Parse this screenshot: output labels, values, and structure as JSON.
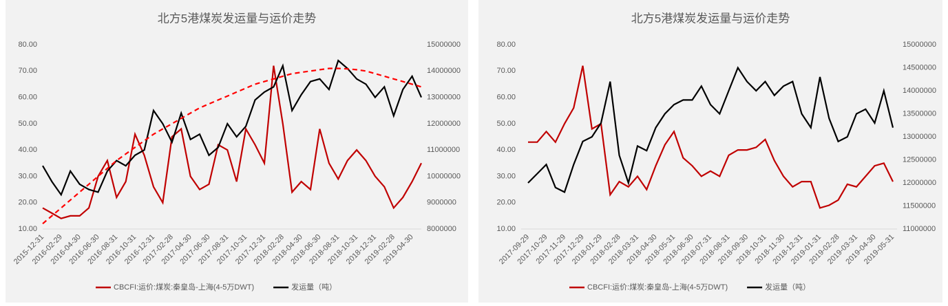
{
  "chart_data": [
    {
      "type": "line",
      "title": "北方5港煤炭发运量与运价走势",
      "categories": [
        "2015-12-31",
        null,
        "2016-02-29",
        null,
        "2016-04-30",
        null,
        "2016-06-30",
        null,
        "2016-08-31",
        null,
        "2016-10-31",
        null,
        "2016-12-31",
        null,
        "2017-02-28",
        null,
        "2017-04-30",
        null,
        "2017-06-30",
        null,
        "2017-08-31",
        null,
        "2017-10-31",
        null,
        "2017-12-31",
        null,
        "2018-02-28",
        null,
        "2018-04-30",
        null,
        "2018-06-30",
        null,
        "2018-08-31",
        null,
        "2018-10-31",
        null,
        "2018-12-31",
        null,
        "2019-02-28",
        null,
        "2019-04-30",
        null
      ],
      "series": [
        {
          "name": "CBCFI:运价:煤炭:秦皇岛-上海(4-5万DWT)",
          "color": "#c00000",
          "values": [
            18,
            16,
            14,
            15,
            15,
            18,
            30,
            36,
            22,
            28,
            46,
            38,
            26,
            20,
            45,
            48,
            30,
            25,
            27,
            42,
            40,
            28,
            48,
            42,
            35,
            72,
            50,
            24,
            28,
            25,
            48,
            35,
            29,
            36,
            40,
            36,
            30,
            26,
            18,
            22,
            28,
            35
          ]
        },
        {
          "name": "发运量（吨）",
          "color": "#000000",
          "axis": "y2",
          "values": [
            10400000,
            9800000,
            9300000,
            10200000,
            9700000,
            9500000,
            9400000,
            10200000,
            10600000,
            10400000,
            10800000,
            11000000,
            12500000,
            12000000,
            11300000,
            12400000,
            11400000,
            11600000,
            10800000,
            11100000,
            12000000,
            11500000,
            11900000,
            12900000,
            13200000,
            13400000,
            14200000,
            12500000,
            13100000,
            13600000,
            13700000,
            13300000,
            14400000,
            14100000,
            13700000,
            13500000,
            13000000,
            13400000,
            12300000,
            13300000,
            13800000,
            13000000
          ]
        }
      ],
      "trendline": {
        "color": "#ff0000",
        "dashed": true,
        "values": [
          12,
          15,
          18,
          21,
          24,
          27,
          30,
          33,
          36,
          38.5,
          41,
          43.5,
          46,
          48,
          50,
          52,
          54,
          56,
          57.5,
          59,
          60.5,
          62,
          63.5,
          65,
          66,
          67,
          68,
          69,
          69.5,
          70,
          70.5,
          71,
          71,
          70.8,
          70.5,
          70,
          69,
          68,
          67,
          66,
          65,
          64
        ]
      },
      "ylim": [
        10,
        80
      ],
      "yticks": [
        {
          "value": 10,
          "label": "10.00"
        },
        {
          "value": 20,
          "label": "20.00"
        },
        {
          "value": 30,
          "label": "30.00"
        },
        {
          "value": 40,
          "label": "40.00"
        },
        {
          "value": 50,
          "label": "50.00"
        },
        {
          "value": 60,
          "label": "60.00"
        },
        {
          "value": 70,
          "label": "70.00"
        },
        {
          "value": 80,
          "label": "80.00"
        }
      ],
      "y2lim": [
        8000000,
        15000000
      ],
      "y2ticks": [
        8000000,
        9000000,
        10000000,
        11000000,
        12000000,
        13000000,
        14000000,
        15000000
      ],
      "legend": "bottom"
    },
    {
      "type": "line",
      "title": "北方5港煤炭发运量与运价走势",
      "categories": [
        "2017-09-29",
        null,
        "2017-10-29",
        null,
        "2017-11-29",
        null,
        "2017-12-29",
        null,
        "2018-01-29",
        null,
        "2018-02-28",
        null,
        "2018-03-31",
        null,
        "2018-04-30",
        null,
        "2018-05-31",
        null,
        "2018-06-30",
        null,
        "2018-07-31",
        null,
        "2018-08-31",
        null,
        "2018-09-30",
        null,
        "2018-10-31",
        null,
        "2018-11-30",
        null,
        "2018-12-31",
        null,
        "2019-01-31",
        null,
        "2019-02-28",
        null,
        "2019-03-31",
        null,
        "2019-04-30",
        null,
        "2019-05-31"
      ],
      "series": [
        {
          "name": "CBCFI:运价:煤炭:秦皇岛-上海(4-5万DWT)",
          "color": "#c00000",
          "values": [
            43,
            43,
            47,
            43,
            50,
            56,
            72,
            48,
            50,
            23,
            28,
            26,
            30,
            25,
            34,
            42,
            47,
            37,
            34,
            30,
            32,
            30,
            38,
            40,
            40,
            41,
            44,
            36,
            30,
            26,
            28,
            28,
            18,
            19,
            21,
            27,
            26,
            30,
            34,
            35,
            28
          ]
        },
        {
          "name": "发运量（吨）",
          "color": "#000000",
          "axis": "y2",
          "values": [
            12000000,
            12200000,
            12400000,
            11900000,
            11800000,
            12400000,
            12900000,
            13000000,
            13300000,
            14200000,
            12600000,
            12000000,
            12800000,
            12700000,
            13200000,
            13500000,
            13700000,
            13800000,
            13800000,
            14100000,
            13700000,
            13500000,
            14000000,
            14500000,
            14200000,
            14000000,
            14200000,
            13900000,
            14100000,
            14200000,
            13500000,
            13200000,
            14300000,
            13400000,
            12900000,
            13000000,
            13500000,
            13600000,
            13300000,
            14000000,
            13200000
          ]
        }
      ],
      "ylim": [
        10,
        80
      ],
      "yticks": [
        {
          "value": 10,
          "label": "10.00"
        },
        {
          "value": 20,
          "label": "20.00"
        },
        {
          "value": 30,
          "label": "30.00"
        },
        {
          "value": 40,
          "label": "40.00"
        },
        {
          "value": 50,
          "label": "50.00"
        },
        {
          "value": 60,
          "label": "60.00"
        },
        {
          "value": 70,
          "label": "70.00"
        },
        {
          "value": 80,
          "label": "80.00"
        }
      ],
      "y2lim": [
        11000000,
        15000000
      ],
      "y2ticks": [
        11000000,
        11500000,
        12000000,
        12500000,
        13000000,
        13500000,
        14000000,
        14500000,
        15000000
      ],
      "legend": "bottom"
    }
  ]
}
